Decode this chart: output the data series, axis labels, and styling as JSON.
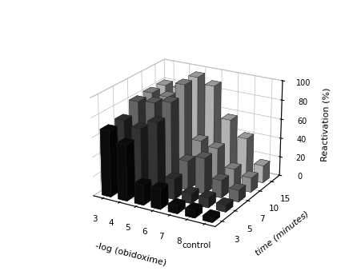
{
  "title": "",
  "xlabel": "-log (obidoxime)",
  "ylabel": "Reactivation (%)",
  "zlabel": "time (minutes)",
  "x_labels": [
    "3",
    "4",
    "5",
    "6",
    "7",
    "8",
    "control"
  ],
  "z_labels": [
    "3",
    "5",
    "7",
    "10",
    "15"
  ],
  "yticks": [
    0,
    20,
    40,
    60,
    80,
    100
  ],
  "bar_colors": [
    "#0d0d0d",
    "#3a3a3a",
    "#707070",
    "#a0a0a0",
    "#c8c8c8"
  ],
  "data": [
    [
      68,
      58,
      21,
      21,
      8,
      8,
      5
    ],
    [
      70,
      65,
      75,
      21,
      10,
      10,
      7
    ],
    [
      81,
      83,
      87,
      30,
      37,
      18,
      12
    ],
    [
      82,
      81,
      97,
      42,
      38,
      20,
      15
    ],
    [
      82,
      82,
      97,
      91,
      59,
      43,
      18
    ]
  ],
  "background_color": "#ffffff",
  "figsize": [
    4.52,
    3.49
  ],
  "dpi": 100
}
